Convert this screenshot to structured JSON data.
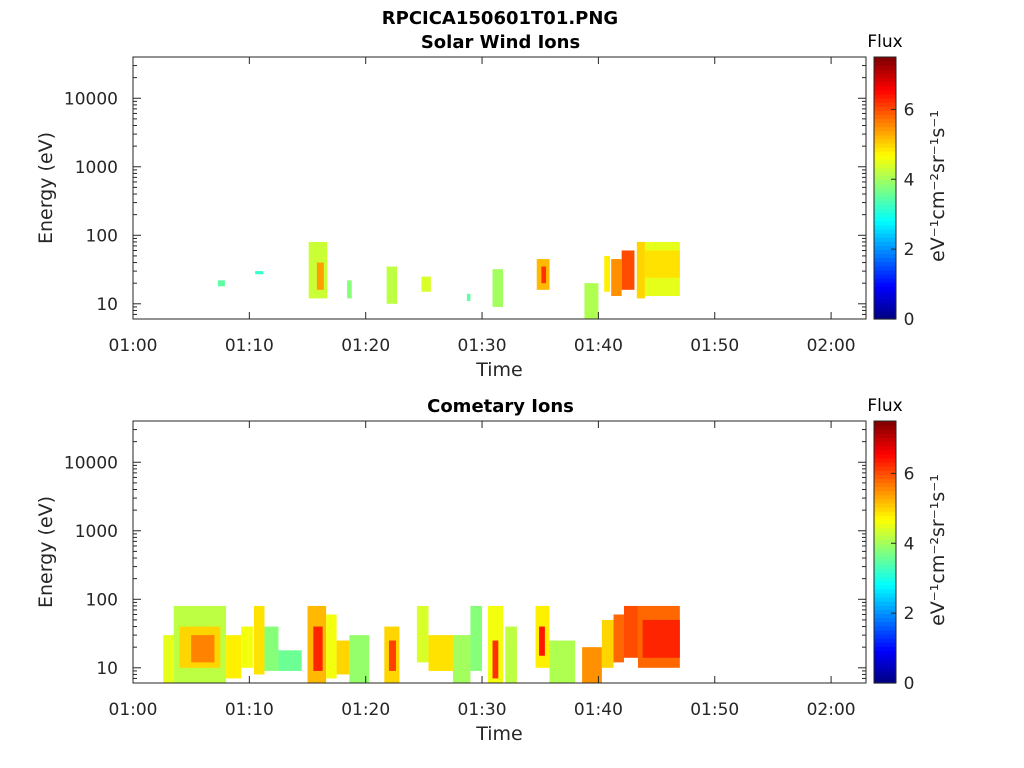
{
  "figure_title": "RPCICA150601T01.PNG",
  "chart_data": [
    {
      "type": "heatmap",
      "title": "Solar Wind Ions",
      "xlabel": "Time",
      "ylabel": "Energy (eV)",
      "x_ticks": [
        "01:00",
        "01:10",
        "01:20",
        "01:30",
        "01:40",
        "01:50",
        "02:00"
      ],
      "xlim_minutes": [
        0,
        63
      ],
      "y_scale": "log",
      "y_ticks": [
        "10",
        "100",
        "1000",
        "10000"
      ],
      "ylim": [
        6,
        40000
      ],
      "colorbar": {
        "title": "Flux",
        "label": "eV⁻¹cm⁻²sr⁻¹s⁻¹",
        "ticks": [
          "0",
          "2",
          "4",
          "6"
        ],
        "range": [
          0,
          7.5
        ],
        "colormap": "jet"
      },
      "blocks": [
        {
          "t": [
            7.3,
            7.9
          ],
          "e": [
            18,
            22
          ],
          "v": 3.5
        },
        {
          "t": [
            10.5,
            11.2
          ],
          "e": [
            27,
            30
          ],
          "v": 3.2
        },
        {
          "t": [
            15.1,
            16.7
          ],
          "e": [
            12,
            80
          ],
          "v": 4.3
        },
        {
          "t": [
            15.8,
            16.4
          ],
          "e": [
            16,
            40
          ],
          "v": 5.4
        },
        {
          "t": [
            18.4,
            18.8
          ],
          "e": [
            12,
            22
          ],
          "v": 3.8
        },
        {
          "t": [
            21.8,
            22.7
          ],
          "e": [
            10,
            35
          ],
          "v": 4.2
        },
        {
          "t": [
            24.8,
            25.6
          ],
          "e": [
            15,
            25
          ],
          "v": 4.4
        },
        {
          "t": [
            28.7,
            29.0
          ],
          "e": [
            11,
            14
          ],
          "v": 3.5
        },
        {
          "t": [
            30.9,
            31.8
          ],
          "e": [
            9,
            32
          ],
          "v": 4.0
        },
        {
          "t": [
            34.7,
            35.8
          ],
          "e": [
            16,
            45
          ],
          "v": 5.2
        },
        {
          "t": [
            35.1,
            35.5
          ],
          "e": [
            20,
            35
          ],
          "v": 6.2
        },
        {
          "t": [
            38.8,
            40.0
          ],
          "e": [
            6,
            20
          ],
          "v": 4.1
        },
        {
          "t": [
            40.5,
            41.0
          ],
          "e": [
            15,
            50
          ],
          "v": 4.8
        },
        {
          "t": [
            41.1,
            42.0
          ],
          "e": [
            13,
            45
          ],
          "v": 5.5
        },
        {
          "t": [
            42.0,
            43.1
          ],
          "e": [
            16,
            60
          ],
          "v": 6.0
        },
        {
          "t": [
            43.3,
            44.0
          ],
          "e": [
            12,
            80
          ],
          "v": 5.0
        },
        {
          "t": [
            44.0,
            47.0
          ],
          "e": [
            13,
            80
          ],
          "v": 4.5
        },
        {
          "t": [
            44.0,
            47.0
          ],
          "e": [
            24,
            60
          ],
          "v": 4.9
        }
      ]
    },
    {
      "type": "heatmap",
      "title": "Cometary Ions",
      "xlabel": "Time",
      "ylabel": "Energy (eV)",
      "x_ticks": [
        "01:00",
        "01:10",
        "01:20",
        "01:30",
        "01:40",
        "01:50",
        "02:00"
      ],
      "xlim_minutes": [
        0,
        63
      ],
      "y_scale": "log",
      "y_ticks": [
        "10",
        "100",
        "1000",
        "10000"
      ],
      "ylim": [
        6,
        40000
      ],
      "colorbar": {
        "title": "Flux",
        "label": "eV⁻¹cm⁻²sr⁻¹s⁻¹",
        "ticks": [
          "0",
          "2",
          "4",
          "6"
        ],
        "range": [
          0,
          7.5
        ],
        "colormap": "jet"
      },
      "blocks": [
        {
          "t": [
            2.6,
            3.5
          ],
          "e": [
            6,
            30
          ],
          "v": 4.5
        },
        {
          "t": [
            3.5,
            8.0
          ],
          "e": [
            6,
            80
          ],
          "v": 4.2
        },
        {
          "t": [
            4.0,
            7.5
          ],
          "e": [
            10,
            40
          ],
          "v": 5.0
        },
        {
          "t": [
            5.0,
            7.0
          ],
          "e": [
            12,
            30
          ],
          "v": 5.6
        },
        {
          "t": [
            8.0,
            9.3
          ],
          "e": [
            7,
            30
          ],
          "v": 4.8
        },
        {
          "t": [
            9.3,
            10.3
          ],
          "e": [
            10,
            40
          ],
          "v": 4.6
        },
        {
          "t": [
            10.4,
            11.3
          ],
          "e": [
            8,
            80
          ],
          "v": 4.9
        },
        {
          "t": [
            11.3,
            12.5
          ],
          "e": [
            9,
            40
          ],
          "v": 3.8
        },
        {
          "t": [
            12.5,
            14.5
          ],
          "e": [
            9,
            18
          ],
          "v": 3.6
        },
        {
          "t": [
            15.0,
            16.6
          ],
          "e": [
            6,
            80
          ],
          "v": 5.2
        },
        {
          "t": [
            15.5,
            16.3
          ],
          "e": [
            9,
            40
          ],
          "v": 6.3
        },
        {
          "t": [
            16.6,
            17.5
          ],
          "e": [
            7,
            60
          ],
          "v": 4.6
        },
        {
          "t": [
            17.5,
            18.6
          ],
          "e": [
            8,
            25
          ],
          "v": 5.0
        },
        {
          "t": [
            18.6,
            20.3
          ],
          "e": [
            6,
            30
          ],
          "v": 3.9
        },
        {
          "t": [
            21.6,
            22.9
          ],
          "e": [
            6,
            40
          ],
          "v": 5.0
        },
        {
          "t": [
            22.0,
            22.6
          ],
          "e": [
            9,
            25
          ],
          "v": 6.1
        },
        {
          "t": [
            24.4,
            25.4
          ],
          "e": [
            12,
            80
          ],
          "v": 4.4
        },
        {
          "t": [
            25.4,
            27.5
          ],
          "e": [
            9,
            30
          ],
          "v": 4.9
        },
        {
          "t": [
            27.5,
            29.0
          ],
          "e": [
            6,
            30
          ],
          "v": 4.0
        },
        {
          "t": [
            29.0,
            30.0
          ],
          "e": [
            9,
            80
          ],
          "v": 3.8
        },
        {
          "t": [
            30.5,
            31.8
          ],
          "e": [
            6,
            80
          ],
          "v": 4.6
        },
        {
          "t": [
            30.9,
            31.4
          ],
          "e": [
            7,
            25
          ],
          "v": 6.2
        },
        {
          "t": [
            32.0,
            33.0
          ],
          "e": [
            6,
            40
          ],
          "v": 4.2
        },
        {
          "t": [
            34.6,
            35.8
          ],
          "e": [
            10,
            80
          ],
          "v": 4.8
        },
        {
          "t": [
            34.9,
            35.4
          ],
          "e": [
            15,
            40
          ],
          "v": 6.4
        },
        {
          "t": [
            35.8,
            38.0
          ],
          "e": [
            6,
            25
          ],
          "v": 4.1
        },
        {
          "t": [
            38.6,
            40.3
          ],
          "e": [
            6,
            20
          ],
          "v": 5.5
        },
        {
          "t": [
            40.3,
            41.3
          ],
          "e": [
            10,
            50
          ],
          "v": 5.0
        },
        {
          "t": [
            41.3,
            42.2
          ],
          "e": [
            12,
            60
          ],
          "v": 5.8
        },
        {
          "t": [
            42.2,
            43.4
          ],
          "e": [
            14,
            80
          ],
          "v": 6.0
        },
        {
          "t": [
            43.4,
            47.0
          ],
          "e": [
            10,
            80
          ],
          "v": 5.8
        },
        {
          "t": [
            43.8,
            47.0
          ],
          "e": [
            14,
            50
          ],
          "v": 6.3
        }
      ]
    }
  ]
}
